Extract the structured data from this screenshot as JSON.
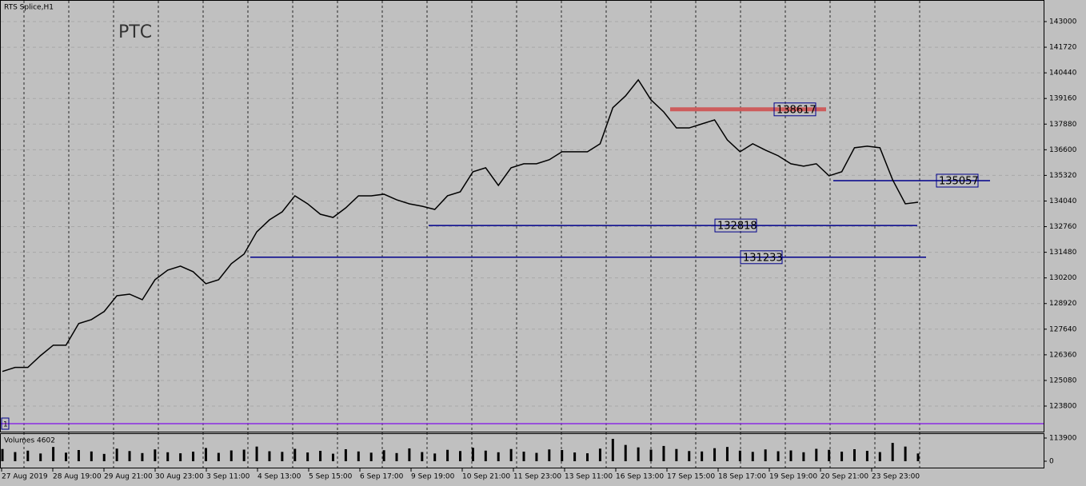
{
  "chart_data": {
    "type": "line",
    "title": "RTS Splice,H1",
    "annotation": "РТС",
    "marker_label": "1",
    "x_labels": [
      "27 Aug 2019",
      "28 Aug 19:00",
      "29 Aug 21:00",
      "30 Aug 23:00",
      "3 Sep 11:00",
      "4 Sep 13:00",
      "5 Sep 15:00",
      "6 Sep 17:00",
      "9 Sep 19:00",
      "10 Sep 21:00",
      "11 Sep 23:00",
      "13 Sep 11:00",
      "16 Sep 13:00",
      "17 Sep 15:00",
      "18 Sep 17:00",
      "19 Sep 19:00",
      "20 Sep 21:00",
      "23 Sep 23:00"
    ],
    "series": [
      {
        "name": "RTS Splice",
        "color": "#000000",
        "values": [
          125530,
          125730,
          125730,
          126320,
          126840,
          126840,
          127920,
          128120,
          128520,
          129310,
          129390,
          129110,
          130110,
          130590,
          130790,
          130510,
          129910,
          130110,
          130910,
          131390,
          132500,
          133100,
          133500,
          134300,
          133900,
          133380,
          133220,
          133700,
          134300,
          134300,
          134380,
          134100,
          133900,
          133780,
          133620,
          134300,
          134500,
          135500,
          135700,
          134820,
          135700,
          135900,
          135900,
          136100,
          136500,
          136500,
          136500,
          136900,
          138700,
          139290,
          140090,
          139090,
          138490,
          137690,
          137690,
          137890,
          138090,
          137090,
          136500,
          136900,
          136580,
          136300,
          135900,
          135780,
          135900,
          135300,
          135500,
          136700,
          136780,
          136700,
          135100,
          133900,
          133980
        ]
      }
    ],
    "levels": [
      {
        "value": 138617,
        "color": "#cd5c5c"
      },
      {
        "value": 135057,
        "color": "#00008b"
      },
      {
        "value": 132818,
        "color": "#00008b"
      },
      {
        "value": 131233,
        "color": "#00008b"
      }
    ],
    "ylim": [
      122523,
      144078
    ],
    "yticks": [
      143000,
      141720,
      140440,
      139160,
      137880,
      136600,
      135320,
      134040,
      132760,
      131480,
      130200,
      128920,
      127640,
      126360,
      125080,
      123800
    ],
    "volume_label": "Volumes 4602",
    "volume_values": [
      60000,
      45000,
      52000,
      38000,
      70000,
      42000,
      55000,
      48000,
      36000,
      62000,
      50000,
      40000,
      58000,
      44000,
      39000,
      47000,
      65000,
      41000,
      53000,
      57000,
      72000,
      49000,
      46000,
      61000,
      43000,
      51000,
      37000,
      59000,
      48000,
      42000,
      54000,
      40000,
      63000,
      45000,
      38000,
      56000,
      50000,
      66000,
      52000,
      44000,
      60000,
      47000,
      41000,
      58000,
      55000,
      43000,
      39000,
      62000,
      110000,
      80000,
      68000,
      57000,
      75000,
      60000,
      50000,
      48000,
      64000,
      70000,
      52000,
      46000,
      58000,
      49000,
      53000,
      44000,
      61000,
      56000,
      47000,
      59000,
      51000,
      45000,
      90000,
      72000,
      38000
    ],
    "volume_ylim": [
      0,
      113900
    ],
    "volume_yticks": [
      113900,
      0
    ]
  }
}
